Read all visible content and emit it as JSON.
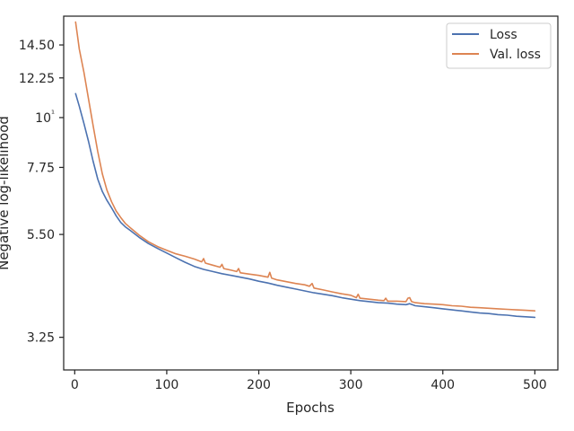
{
  "chart_data": {
    "type": "line",
    "title": "",
    "xlabel": "Epochs",
    "ylabel": "Negative log-likelihood",
    "yscale": "log",
    "xlim": [
      -12,
      525
    ],
    "ylim": [
      2.75,
      16.8
    ],
    "grid": false,
    "legend_position": "top-right",
    "x_ticks": [
      0,
      100,
      200,
      300,
      400,
      500
    ],
    "x_tick_labels": [
      "0",
      "100",
      "200",
      "300",
      "400",
      "500"
    ],
    "y_ticks": [
      3.25,
      5.5,
      7.75,
      10,
      12.25,
      14.5
    ],
    "y_tick_labels": [
      "3.25",
      "5.50",
      "7.75",
      "10¹",
      "12.25",
      "14.50"
    ],
    "series": [
      {
        "name": "Loss",
        "color": "#4c72b0",
        "x": [
          1,
          5,
          10,
          15,
          20,
          25,
          30,
          35,
          40,
          45,
          50,
          55,
          60,
          70,
          80,
          90,
          100,
          110,
          120,
          130,
          140,
          150,
          160,
          170,
          180,
          190,
          200,
          210,
          220,
          230,
          240,
          250,
          260,
          270,
          280,
          290,
          300,
          310,
          320,
          330,
          340,
          350,
          360,
          364,
          370,
          380,
          390,
          400,
          410,
          420,
          430,
          440,
          450,
          460,
          470,
          480,
          490,
          500
        ],
        "y": [
          11.3,
          10.6,
          9.7,
          8.85,
          8.0,
          7.3,
          6.85,
          6.55,
          6.3,
          6.05,
          5.85,
          5.72,
          5.62,
          5.42,
          5.25,
          5.12,
          5.0,
          4.88,
          4.77,
          4.67,
          4.6,
          4.55,
          4.5,
          4.46,
          4.42,
          4.38,
          4.33,
          4.29,
          4.24,
          4.2,
          4.16,
          4.12,
          4.08,
          4.05,
          4.02,
          3.98,
          3.95,
          3.92,
          3.9,
          3.88,
          3.87,
          3.85,
          3.84,
          3.86,
          3.82,
          3.8,
          3.78,
          3.76,
          3.74,
          3.72,
          3.7,
          3.68,
          3.67,
          3.65,
          3.64,
          3.62,
          3.61,
          3.6
        ]
      },
      {
        "name": "Val. loss",
        "color": "#dd8452",
        "x": [
          1,
          3,
          5,
          10,
          15,
          20,
          25,
          30,
          35,
          40,
          45,
          50,
          55,
          60,
          70,
          80,
          90,
          100,
          110,
          120,
          130,
          138,
          140,
          142,
          150,
          158,
          160,
          162,
          170,
          176,
          178,
          180,
          190,
          200,
          210,
          212,
          214,
          220,
          230,
          240,
          250,
          255,
          258,
          260,
          270,
          280,
          290,
          300,
          306,
          308,
          310,
          320,
          330,
          336,
          338,
          340,
          350,
          360,
          362,
          364,
          366,
          370,
          380,
          390,
          400,
          410,
          420,
          430,
          440,
          450,
          460,
          470,
          480,
          490,
          500
        ],
        "y": [
          16.3,
          15.2,
          14.2,
          12.6,
          11.0,
          9.6,
          8.4,
          7.5,
          6.9,
          6.5,
          6.2,
          6.0,
          5.82,
          5.7,
          5.48,
          5.3,
          5.17,
          5.07,
          4.98,
          4.92,
          4.85,
          4.78,
          4.86,
          4.75,
          4.7,
          4.65,
          4.72,
          4.62,
          4.58,
          4.55,
          4.62,
          4.52,
          4.49,
          4.46,
          4.42,
          4.53,
          4.4,
          4.36,
          4.32,
          4.28,
          4.25,
          4.22,
          4.28,
          4.18,
          4.14,
          4.1,
          4.06,
          4.03,
          3.98,
          4.05,
          3.97,
          3.95,
          3.93,
          3.92,
          3.97,
          3.91,
          3.91,
          3.9,
          3.97,
          3.98,
          3.9,
          3.88,
          3.86,
          3.85,
          3.84,
          3.82,
          3.81,
          3.79,
          3.78,
          3.77,
          3.76,
          3.75,
          3.74,
          3.73,
          3.72
        ]
      }
    ]
  }
}
